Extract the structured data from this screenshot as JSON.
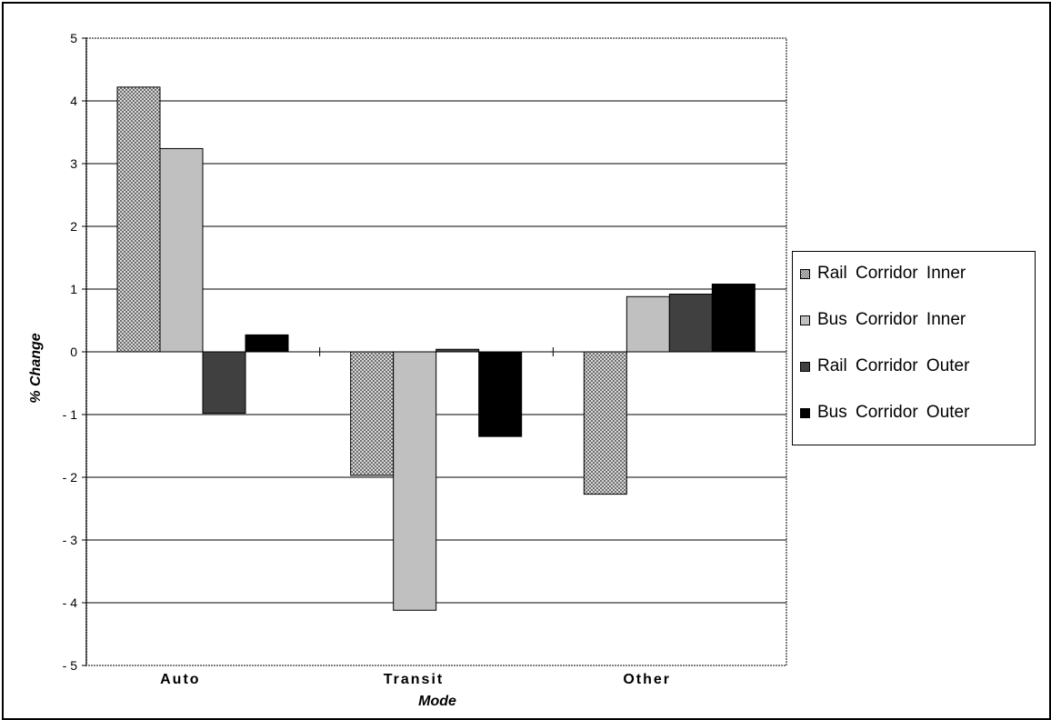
{
  "chart_data": {
    "type": "bar",
    "categories": [
      "Auto",
      "Transit",
      "Other"
    ],
    "xlabel": "Mode",
    "ylabel": "% Change",
    "ylim": [
      -5,
      5
    ],
    "yticks": [
      5,
      4,
      3,
      2,
      1,
      0,
      -1,
      -2,
      -3,
      -4,
      -5
    ],
    "ytick_labels": [
      "5",
      "4",
      "3",
      "2",
      "1",
      "0",
      "- 1",
      "- 2",
      "- 3",
      "- 4",
      "- 5"
    ],
    "grid": true,
    "legend_position": "right",
    "series": [
      {
        "name": "Rail Corridor Inner",
        "values": [
          4.22,
          -1.97,
          -2.27
        ],
        "color": "#a8a8a8",
        "pattern": "checker"
      },
      {
        "name": "Bus Corridor Inner",
        "values": [
          3.24,
          -4.12,
          0.88
        ],
        "color": "#c0c0c0",
        "pattern": "solid"
      },
      {
        "name": "Rail Corridor Outer",
        "values": [
          -0.98,
          0.04,
          0.92
        ],
        "color": "#404040",
        "pattern": "solid"
      },
      {
        "name": "Bus Corridor Outer",
        "values": [
          0.27,
          -1.35,
          1.08
        ],
        "color": "#000000",
        "pattern": "solid"
      }
    ]
  }
}
